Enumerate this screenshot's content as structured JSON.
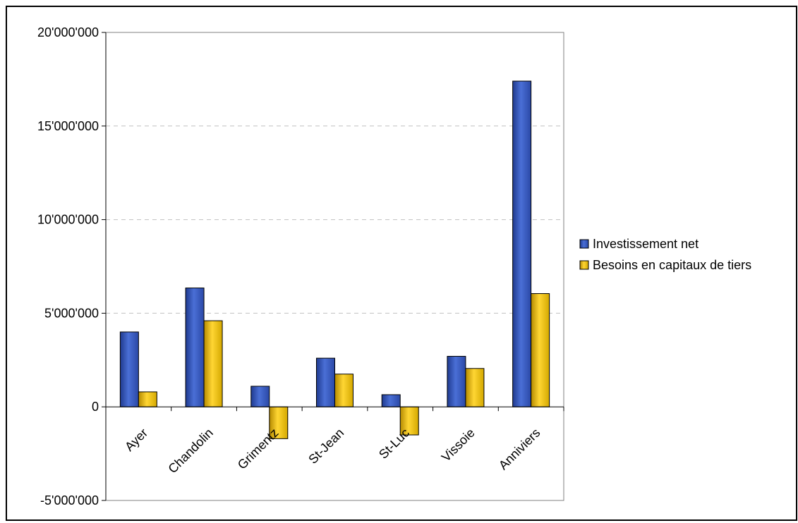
{
  "chart_data": {
    "type": "bar",
    "title": "",
    "xlabel": "",
    "ylabel": "",
    "categories": [
      "Ayer",
      "Chandolin",
      "Grimentz",
      "St-Jean",
      "St-Luc",
      "Vissoie",
      "Anniviers"
    ],
    "series": [
      {
        "name": "Investissement net",
        "color": "#3355bb",
        "values": [
          4000000,
          6350000,
          1100000,
          2600000,
          650000,
          2700000,
          17400000
        ]
      },
      {
        "name": "Besoins en capitaux de tiers",
        "color": "#f2c200",
        "values": [
          800000,
          4600000,
          -1700000,
          1750000,
          -1500000,
          2050000,
          6050000
        ]
      }
    ],
    "ylim": [
      -5000000,
      20000000
    ],
    "yticks": [
      -5000000,
      0,
      5000000,
      10000000,
      15000000,
      20000000
    ],
    "ytick_labels": [
      "-5'000'000",
      "0",
      "5'000'000",
      "10'000'000",
      "15'000'000",
      "20'000'000"
    ],
    "grid": "horizontal dashed",
    "legend_position": "right"
  }
}
